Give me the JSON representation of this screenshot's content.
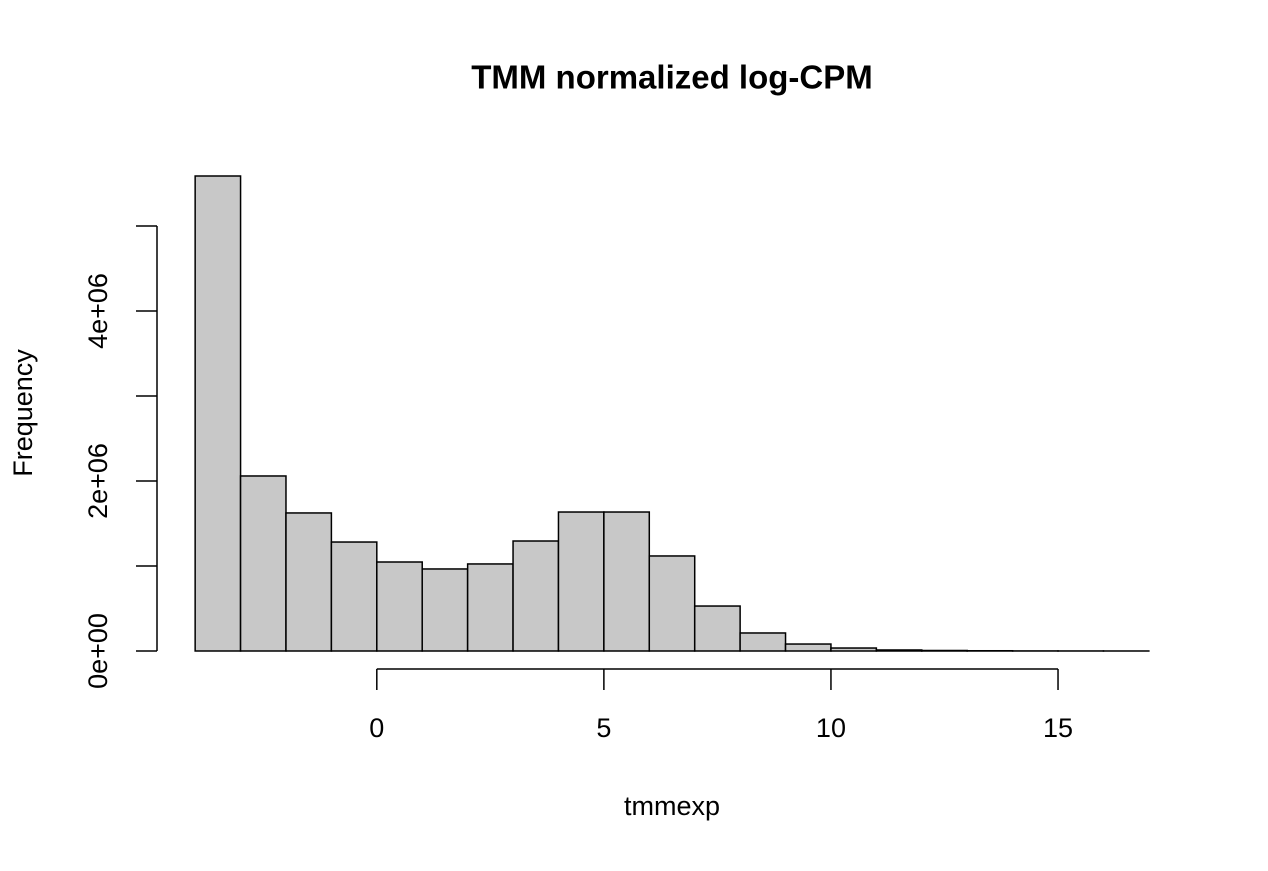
{
  "chart_data": {
    "type": "histogram",
    "title": "TMM normalized log-CPM",
    "x_label": "tmmexp",
    "y_label": "Frequency",
    "bins": [
      -4,
      -3,
      -2,
      -1,
      0,
      1,
      2,
      3,
      4,
      5,
      6,
      7,
      8,
      9,
      10,
      11,
      12,
      13,
      14,
      15,
      16,
      17
    ],
    "values": [
      5588000,
      2059000,
      1624000,
      1282000,
      1047000,
      965000,
      1024000,
      1294000,
      1635000,
      1635000,
      1118000,
      529000,
      212000,
      82000,
      35000,
      12000,
      6000,
      3000,
      1000,
      500,
      200
    ],
    "color": "#c8c8c8",
    "xlim": [
      -4.84,
      17.84
    ],
    "xticks": [
      0,
      5,
      10,
      15
    ],
    "ylim": [
      -223500,
      5811500
    ],
    "yticks": [
      {
        "value": 0,
        "label": "0e+00"
      },
      {
        "value": 1000000,
        "label": null
      },
      {
        "value": 2000000,
        "label": "2e+06"
      },
      {
        "value": 3000000,
        "label": null
      },
      {
        "value": 4000000,
        "label": "4e+06"
      },
      {
        "value": 5000000,
        "label": null
      }
    ]
  }
}
